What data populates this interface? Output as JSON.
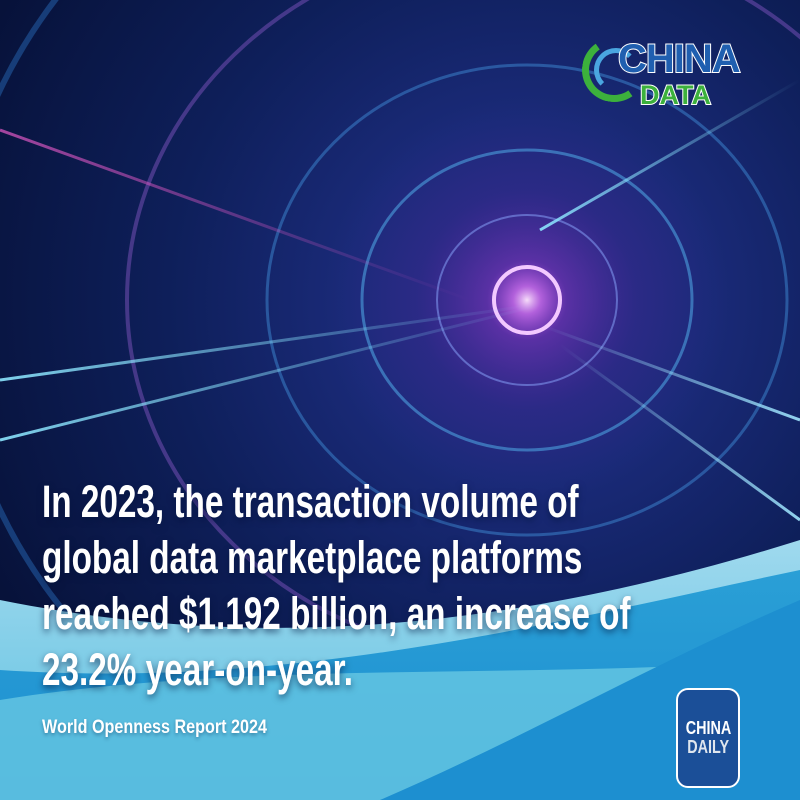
{
  "logo_top": {
    "line1": "CHINA",
    "line2": "DATA",
    "colors": {
      "blue": "#1f5fb0",
      "green": "#3cb13c"
    }
  },
  "headline": {
    "lines": [
      "In 2023, the transaction volume of",
      "global data marketplace platforms",
      "reached $1.192 billion, an increase of",
      "23.2% year-on-year."
    ]
  },
  "source": "World Openness Report 2024",
  "logo_bottom": {
    "line1": "CHINA",
    "line2": "DAILY",
    "color": "#1b4f98"
  },
  "colors": {
    "wave_light": "#9fd9ee",
    "wave_blue": "#1d8fd0",
    "tunnel_glow": "#e07cff"
  }
}
